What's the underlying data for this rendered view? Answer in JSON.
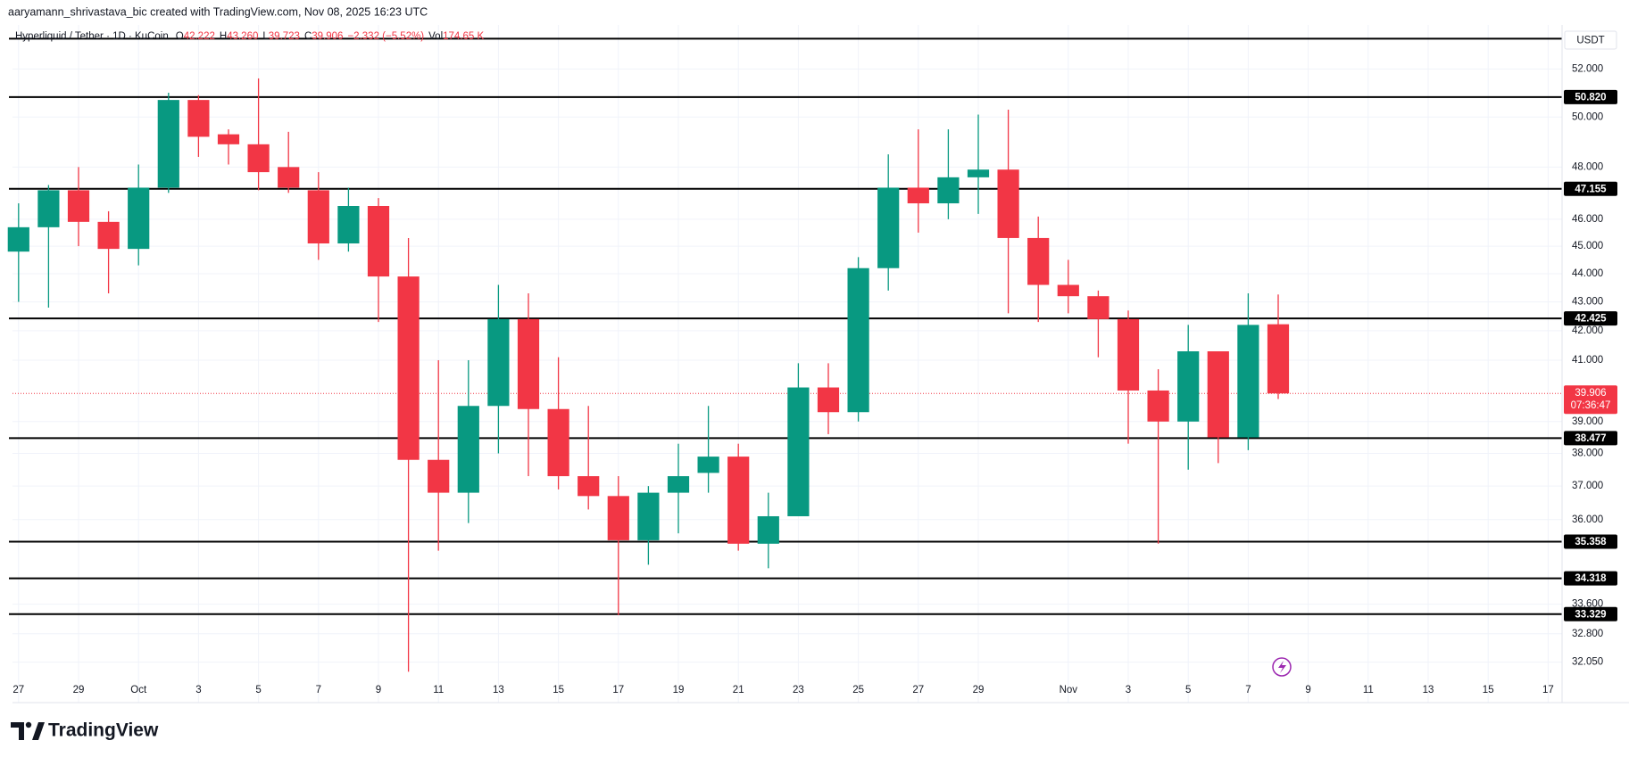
{
  "chart_data": {
    "type": "candlestick",
    "attribution": "aaryamann_shrivastava_bic created with TradingView.com, Nov 08, 2025 16:23 UTC",
    "symbol": "Hyperliquid / Tether · 1D · KuCoin",
    "legend": [
      {
        "key": "O",
        "text": "42.222"
      },
      {
        "key": "H",
        "text": "43.260"
      },
      {
        "key": "L",
        "text": "39.723"
      },
      {
        "key": "C",
        "text": "39.906"
      }
    ],
    "change": "−2.332 (−5.52%)",
    "volume_key": "Vol",
    "volume": "174.65 K",
    "brand": "TradingView",
    "currency": "USDT",
    "up_color": "#089981",
    "down_color": "#f23645",
    "log_scale": true,
    "grid": true,
    "categories": [
      "27",
      null,
      "29",
      null,
      "Oct",
      null,
      "3",
      null,
      "5",
      null,
      "7",
      null,
      "9",
      null,
      "11",
      null,
      "13",
      null,
      "15",
      null,
      "17",
      null,
      "19",
      null,
      "21",
      null,
      "23",
      null,
      "25",
      null,
      "27",
      null,
      "29",
      null,
      null,
      "Nov",
      null,
      "3",
      null,
      "5",
      null,
      "7",
      null,
      "9",
      null,
      "11",
      null,
      "13",
      null,
      "15",
      null,
      "17"
    ],
    "open": [
      44.8,
      45.7,
      47.1,
      45.9,
      44.9,
      47.2,
      50.7,
      49.3,
      48.9,
      48.0,
      47.1,
      45.1,
      46.5,
      43.9,
      37.8,
      36.8,
      39.5,
      42.4,
      39.4,
      37.3,
      36.7,
      35.4,
      36.8,
      37.4,
      37.9,
      35.3,
      36.1,
      40.1,
      39.3,
      44.2,
      47.2,
      46.6,
      47.6,
      47.9,
      45.3,
      43.6,
      43.2,
      42.4,
      40.0,
      39.0,
      41.3,
      38.5,
      42.222,
      null,
      null,
      null,
      null,
      null,
      null,
      null,
      null,
      null
    ],
    "high": [
      46.6,
      47.3,
      48.0,
      46.3,
      48.1,
      51.0,
      50.9,
      49.5,
      51.6,
      49.4,
      47.8,
      47.2,
      46.8,
      45.3,
      41.0,
      41.0,
      43.6,
      43.3,
      41.1,
      39.5,
      37.3,
      37.0,
      38.3,
      39.5,
      38.3,
      36.8,
      40.9,
      40.9,
      44.6,
      48.5,
      49.5,
      49.5,
      50.1,
      50.3,
      46.1,
      44.5,
      43.4,
      42.7,
      40.7,
      42.2,
      41.3,
      43.3,
      43.26,
      null,
      null,
      null,
      null,
      null,
      null,
      null,
      null,
      null
    ],
    "low": [
      43.0,
      42.8,
      45.0,
      43.3,
      44.3,
      47.0,
      48.4,
      48.1,
      47.1,
      47.0,
      44.5,
      44.8,
      42.3,
      31.8,
      35.1,
      35.9,
      38.0,
      37.3,
      36.9,
      36.3,
      33.3,
      34.7,
      35.6,
      36.8,
      35.1,
      34.6,
      36.1,
      38.6,
      39.0,
      43.4,
      45.5,
      46.0,
      46.2,
      42.6,
      42.3,
      42.6,
      41.1,
      38.3,
      35.3,
      37.5,
      37.7,
      38.1,
      39.723,
      null,
      null,
      null,
      null,
      null,
      null,
      null,
      null,
      null
    ],
    "close": [
      45.7,
      47.1,
      45.9,
      44.9,
      47.2,
      50.7,
      49.2,
      48.9,
      47.8,
      47.2,
      45.1,
      46.5,
      43.9,
      37.8,
      36.8,
      39.5,
      42.4,
      39.4,
      37.3,
      36.7,
      35.4,
      36.8,
      37.3,
      37.9,
      35.3,
      36.1,
      40.1,
      39.3,
      44.2,
      47.2,
      46.6,
      47.6,
      47.9,
      45.3,
      43.6,
      43.2,
      42.4,
      40.0,
      39.0,
      41.3,
      38.5,
      42.2,
      39.906,
      null,
      null,
      null,
      null,
      null,
      null,
      null,
      null,
      null
    ],
    "ylim": [
      31.6,
      53.9
    ],
    "yticks": [
      {
        "value": 52,
        "label": "52.000"
      },
      {
        "value": 50,
        "label": "50.000"
      },
      {
        "value": 48,
        "label": "48.000"
      },
      {
        "value": 46,
        "label": "46.000"
      },
      {
        "value": 45,
        "label": "45.000"
      },
      {
        "value": 44,
        "label": "44.000"
      },
      {
        "value": 43,
        "label": "43.000"
      },
      {
        "value": 42,
        "label": "42.000"
      },
      {
        "value": 41,
        "label": "41.000"
      },
      {
        "value": 39,
        "label": "39.000"
      },
      {
        "value": 38,
        "label": "38.000"
      },
      {
        "value": 37,
        "label": "37.000"
      },
      {
        "value": 36,
        "label": "36.000"
      },
      {
        "value": 33.6,
        "label": "33.600"
      },
      {
        "value": 32.8,
        "label": "32.800"
      },
      {
        "value": 32.05,
        "label": "32.050"
      }
    ],
    "levels": [
      {
        "value": 53.3,
        "label": null
      },
      {
        "value": 50.82,
        "label": "50.820"
      },
      {
        "value": 47.155,
        "label": "47.155"
      },
      {
        "value": 42.425,
        "label": "42.425"
      },
      {
        "value": 38.477,
        "label": "38.477"
      },
      {
        "value": 35.358,
        "label": "35.358"
      },
      {
        "value": 34.318,
        "label": "34.318"
      },
      {
        "value": 33.329,
        "label": "33.329"
      }
    ],
    "last_price": {
      "value": 39.906,
      "label": "39.906"
    },
    "countdown": "07:36:47"
  }
}
